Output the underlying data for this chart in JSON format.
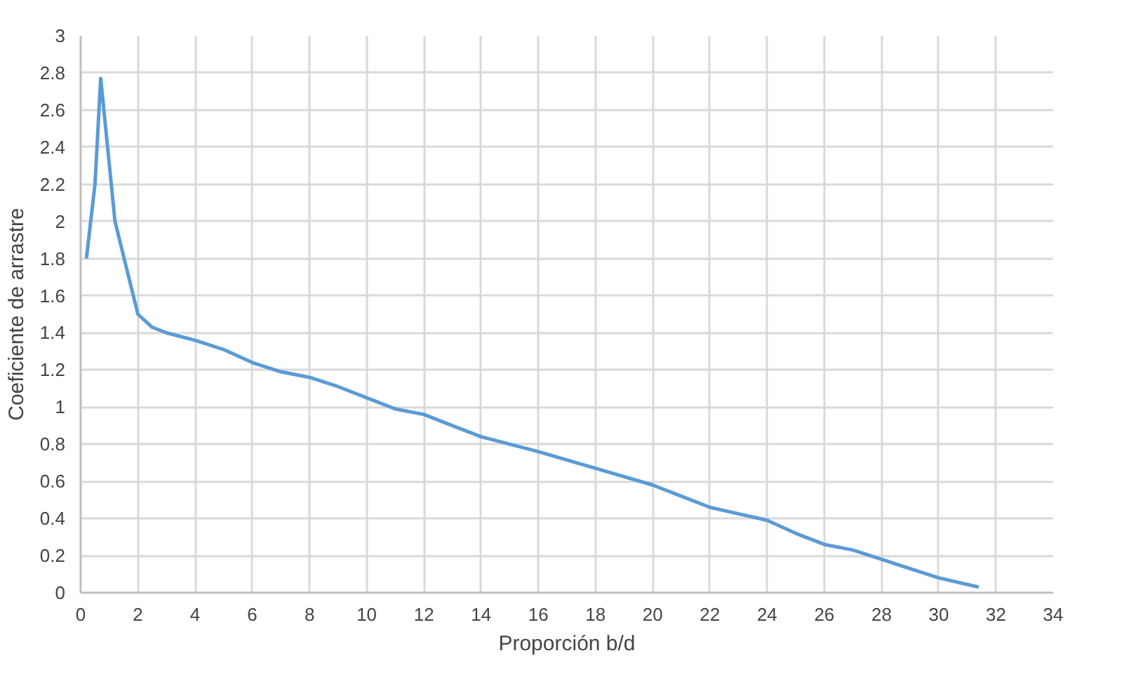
{
  "chart_data": {
    "type": "line",
    "xlabel": "Proporción b/d",
    "ylabel": "Coeficiente de arrastre",
    "x": [
      0.2,
      0.5,
      0.7,
      1.2,
      2,
      2.5,
      3,
      4,
      5,
      6,
      7,
      8,
      9,
      10,
      11,
      12,
      13,
      14,
      16,
      18,
      20,
      21,
      22,
      24,
      25,
      26,
      27,
      28,
      30,
      31.4
    ],
    "series": [
      {
        "color": "#5b9bd5",
        "values": [
          1.8,
          2.2,
          2.77,
          2.0,
          1.5,
          1.43,
          1.4,
          1.36,
          1.31,
          1.24,
          1.19,
          1.16,
          1.11,
          1.05,
          0.99,
          0.96,
          0.9,
          0.84,
          0.76,
          0.67,
          0.58,
          0.52,
          0.46,
          0.39,
          0.32,
          0.26,
          0.23,
          0.18,
          0.08,
          0.03
        ]
      }
    ],
    "xlim": [
      0,
      34
    ],
    "xticks": [
      0,
      2,
      4,
      6,
      8,
      10,
      12,
      14,
      16,
      18,
      20,
      22,
      24,
      26,
      28,
      30,
      32,
      34
    ],
    "ylim": [
      0,
      3
    ],
    "yticks": [
      0,
      0.2,
      0.4,
      0.6,
      0.8,
      1,
      1.2,
      1.4,
      1.6,
      1.8,
      2,
      2.2,
      2.4,
      2.6,
      2.8,
      3
    ],
    "grid": true,
    "marker": "none",
    "line_style": "solid"
  }
}
